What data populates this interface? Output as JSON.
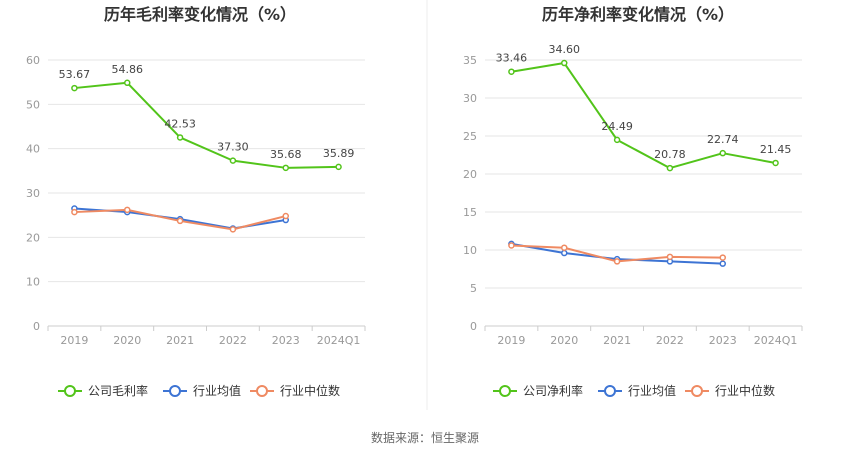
{
  "colors": {
    "company": "#52c41a",
    "industry_avg": "#3d74d4",
    "industry_median": "#ef8a62",
    "grid": "#e6e6e6",
    "axis": "#cccccc",
    "divider": "#eeeeee"
  },
  "legend_position": "bottom",
  "source": "数据来源：恒生聚源",
  "chart_data": [
    {
      "type": "line",
      "title": "历年毛利率变化情况（%）",
      "x": [
        "2019",
        "2020",
        "2021",
        "2022",
        "2023",
        "2024Q1"
      ],
      "ylim": [
        0,
        60
      ],
      "yticks": [
        0,
        10,
        20,
        30,
        40,
        50,
        60
      ],
      "grid": true,
      "legend": [
        "公司毛利率",
        "行业均值",
        "行业中位数"
      ],
      "series": [
        {
          "name": "公司毛利率",
          "values": [
            53.67,
            54.86,
            42.53,
            37.3,
            35.68,
            35.89
          ],
          "labels": [
            "53.67",
            "54.86",
            "42.53",
            "37.30",
            "35.68",
            "35.89"
          ]
        },
        {
          "name": "行业均值",
          "values": [
            26.5,
            25.7,
            24.1,
            22.0,
            23.9,
            null
          ]
        },
        {
          "name": "行业中位数",
          "values": [
            25.7,
            26.2,
            23.7,
            21.8,
            24.8,
            null
          ]
        }
      ]
    },
    {
      "type": "line",
      "title": "历年净利率变化情况（%）",
      "x": [
        "2019",
        "2020",
        "2021",
        "2022",
        "2023",
        "2024Q1"
      ],
      "ylim": [
        0,
        35
      ],
      "yticks": [
        0,
        5,
        10,
        15,
        20,
        25,
        30,
        35
      ],
      "grid": true,
      "legend": [
        "公司净利率",
        "行业均值",
        "行业中位数"
      ],
      "series": [
        {
          "name": "公司净利率",
          "values": [
            33.46,
            34.6,
            24.49,
            20.78,
            22.74,
            21.45
          ],
          "labels": [
            "33.46",
            "34.60",
            "24.49",
            "20.78",
            "22.74",
            "21.45"
          ]
        },
        {
          "name": "行业均值",
          "values": [
            10.8,
            9.6,
            8.8,
            8.5,
            8.2,
            null
          ]
        },
        {
          "name": "行业中位数",
          "values": [
            10.6,
            10.3,
            8.5,
            9.1,
            9.0,
            null
          ]
        }
      ]
    }
  ]
}
